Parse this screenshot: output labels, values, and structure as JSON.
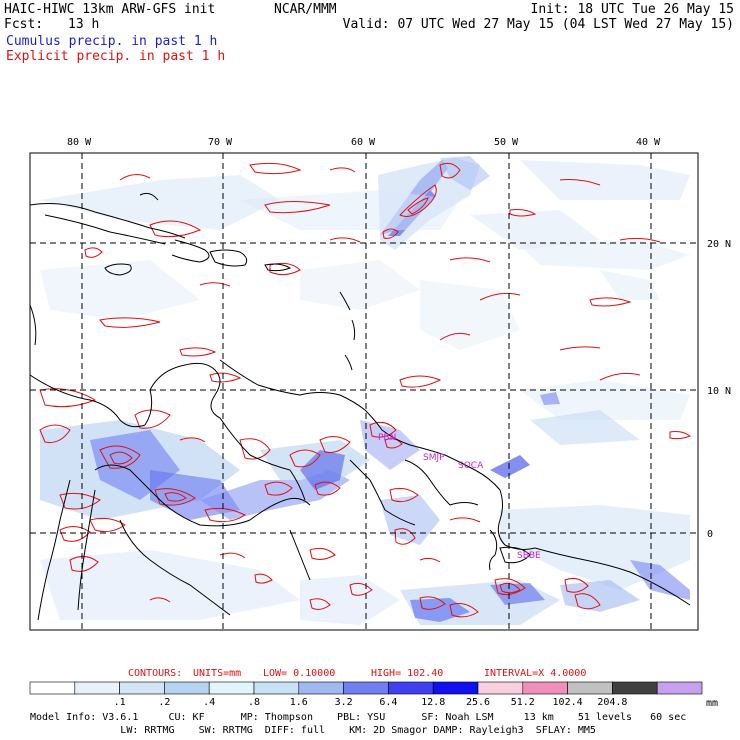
{
  "header": {
    "model": "HAIC-HIWC 13km ARW-GFS init",
    "org": "NCAR/MMM",
    "init": "Init: 18 UTC Tue 26 May 15",
    "fcst_label": "Fcst:",
    "fcst_value": "13 h",
    "valid": "Valid: 07 UTC Wed 27 May 15 (04 LST Wed 27 May 15)",
    "cumulus": "Cumulus precip. in past 1 h",
    "explicit": "Explicit precip. in past 1 h"
  },
  "axes": {
    "lon_labels": [
      "80 W",
      "70 W",
      "60 W",
      "50 W",
      "40 W"
    ],
    "lat_labels": [
      "20 N",
      "10 N",
      "0"
    ]
  },
  "stations": [
    "PBN",
    "SMJP",
    "SOCA",
    "SBBE"
  ],
  "contours": {
    "label": "CONTOURS:",
    "units": "UNITS=mm",
    "low": "LOW= 0.10000",
    "high": "HIGH= 102.40",
    "interval": "INTERVAL=X 4.0000"
  },
  "colorbar": {
    "colors": [
      "#ffffff",
      "#e8f0fa",
      "#d2e4f6",
      "#b4d4f2",
      "#e0f6fa",
      "#c8e2f8",
      "#a0b8f0",
      "#7080f0",
      "#4040f0",
      "#1010f0",
      "#f8d0e0",
      "#f090b8",
      "#c0c0c0",
      "#404040",
      "#c8a0f0"
    ],
    "tick_labels": [
      ".1",
      ".2",
      ".4",
      ".8",
      "1.6",
      "3.2",
      "6.4",
      "12.8",
      "25.6",
      "51.2",
      "102.4",
      "204.8"
    ],
    "units": "mm"
  },
  "footer": {
    "line1": "Model Info: V3.6.1     CU: KF      MP: Thompson    PBL: YSU      SF: Noah LSM     13 km    51 levels   60 sec",
    "line2": "               LW: RRTMG    SW: RRTMG  DIFF: full    KM: 2D Smagor DAMP: Rayleigh3  SFLAY: MM5"
  }
}
